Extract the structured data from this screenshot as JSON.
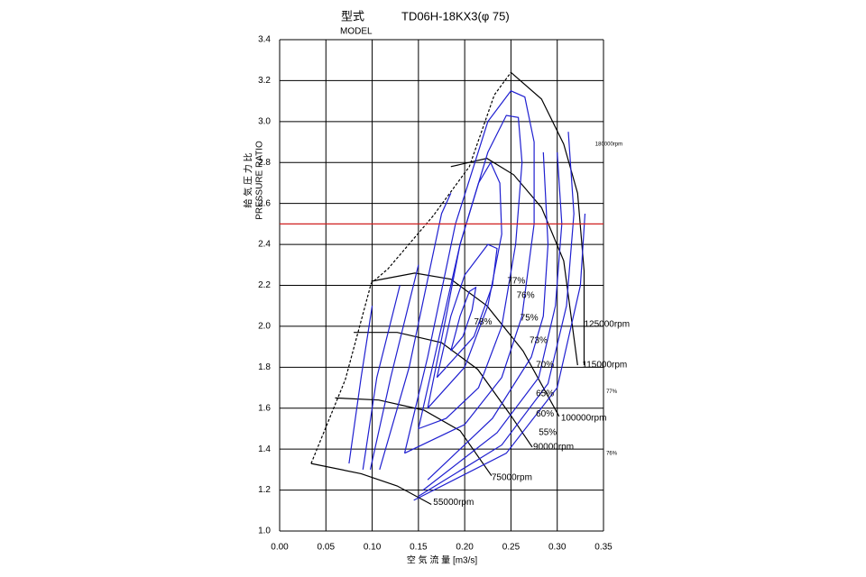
{
  "chart_data": {
    "type": "line",
    "model_label": "型式",
    "model": "TD06H-18KX3(φ 75)",
    "model_en": "MODEL",
    "ylabel_ja": "給 気 圧 力 比",
    "ylabel_en": "PRESSURE RATIO",
    "xlabel": "空 気 流 量 [m3/s]",
    "xlim": [
      0,
      0.35
    ],
    "ylim": [
      1,
      3.4
    ],
    "xticks": [
      {
        "value": 0,
        "label": "0.00"
      },
      {
        "value": 0.05,
        "label": "0.05"
      },
      {
        "value": 0.1,
        "label": "0.10"
      },
      {
        "value": 0.15,
        "label": "0.15"
      },
      {
        "value": 0.2,
        "label": "0.20"
      },
      {
        "value": 0.25,
        "label": "0.25"
      },
      {
        "value": 0.3,
        "label": "0.30"
      },
      {
        "value": 0.35,
        "label": "0.35"
      }
    ],
    "yticks": [
      {
        "value": 1,
        "label": "1.0"
      },
      1.2,
      1.4,
      1.6,
      1.8,
      {
        "value": 2,
        "label": "2.0"
      },
      2.2,
      2.4,
      2.6,
      2.8,
      {
        "value": 3,
        "label": "3.0"
      },
      3.2,
      3.4
    ],
    "grid": true,
    "grid_color": "#000000",
    "series": [
      {
        "color": "#000000",
        "dash": true,
        "x": [
          0.034,
          0.071,
          0.099,
          0.117,
          0.166,
          0.205,
          0.232,
          0.25
        ],
        "values": [
          1.33,
          1.74,
          2.21,
          2.28,
          2.54,
          2.78,
          3.13,
          3.24
        ]
      },
      {
        "color": "#000000",
        "x": [
          0.25,
          0.283,
          0.307,
          0.322,
          0.329,
          0.329
        ],
        "values": [
          3.24,
          3.11,
          2.89,
          2.65,
          2.27,
          1.81
        ]
      },
      {
        "color": "#000000",
        "x": [
          0.034,
          0.088,
          0.127,
          0.164
        ],
        "values": [
          1.33,
          1.28,
          1.22,
          1.13
        ]
      },
      {
        "color": "#000000",
        "x": [
          0.06,
          0.107,
          0.156,
          0.195,
          0.229
        ],
        "values": [
          1.65,
          1.64,
          1.59,
          1.49,
          1.27
        ]
      },
      {
        "color": "#000000",
        "x": [
          0.08,
          0.127,
          0.175,
          0.214,
          0.249,
          0.273
        ],
        "values": [
          1.97,
          1.97,
          1.92,
          1.79,
          1.57,
          1.41
        ]
      },
      {
        "color": "#000000",
        "x": [
          0.099,
          0.146,
          0.185,
          0.224,
          0.263,
          0.302
        ],
        "values": [
          2.22,
          2.26,
          2.23,
          2.1,
          1.88,
          1.56
        ]
      },
      {
        "color": "#000000",
        "x": [
          0.185,
          0.224,
          0.253,
          0.283,
          0.307,
          0.322
        ],
        "values": [
          2.78,
          2.82,
          2.74,
          2.58,
          2.32,
          1.81
        ]
      },
      {
        "color": "#1f1fd0",
        "x": [
          0.185,
          0.195,
          0.205,
          0.212,
          0.208,
          0.198,
          0.185
        ],
        "values": [
          1.88,
          2.05,
          2.17,
          2.19,
          2.08,
          1.95,
          1.88
        ]
      },
      {
        "color": "#1f1fd0",
        "x": [
          0.17,
          0.185,
          0.2,
          0.225,
          0.235,
          0.23,
          0.21,
          0.17
        ],
        "values": [
          1.75,
          2.05,
          2.25,
          2.4,
          2.38,
          2.2,
          1.95,
          1.75
        ]
      },
      {
        "color": "#1f1fd0",
        "x": [
          0.16,
          0.18,
          0.195,
          0.215,
          0.228,
          0.238,
          0.24,
          0.225,
          0.2,
          0.16
        ],
        "values": [
          1.6,
          2.05,
          2.4,
          2.7,
          2.8,
          2.7,
          2.45,
          2.1,
          1.8,
          1.6
        ]
      },
      {
        "color": "#1f1fd0",
        "x": [
          0.15,
          0.17,
          0.195,
          0.225,
          0.245,
          0.258,
          0.262,
          0.255,
          0.24,
          0.215,
          0.18,
          0.15
        ],
        "values": [
          1.5,
          1.9,
          2.4,
          2.85,
          3.03,
          3.02,
          2.8,
          2.4,
          2.0,
          1.7,
          1.55,
          1.5
        ]
      },
      {
        "color": "#1f1fd0",
        "x": [
          0.135,
          0.16,
          0.19,
          0.225,
          0.25,
          0.265,
          0.275,
          0.275,
          0.262,
          0.24,
          0.2,
          0.135
        ],
        "values": [
          1.38,
          1.85,
          2.5,
          3.0,
          3.15,
          3.12,
          2.9,
          2.5,
          2.05,
          1.75,
          1.52,
          1.38
        ]
      },
      {
        "color": "#1f1fd0",
        "x": [
          0.108,
          0.14,
          0.175,
          0.185,
          null,
          0.16,
          0.23,
          0.272,
          0.285,
          0.29,
          0.285
        ],
        "values": [
          1.3,
          1.8,
          2.55,
          2.65,
          null,
          1.25,
          1.55,
          1.85,
          2.05,
          2.4,
          2.85
        ]
      },
      {
        "color": "#1f1fd0",
        "x": [
          0.098,
          0.12,
          0.15,
          null,
          0.155,
          0.235,
          0.28,
          0.298,
          0.305,
          0.3
        ],
        "values": [
          1.3,
          1.75,
          2.3,
          null,
          1.2,
          1.48,
          1.75,
          2.1,
          2.5,
          2.85
        ]
      },
      {
        "color": "#1f1fd0",
        "x": [
          0.09,
          0.105,
          0.13,
          null,
          0.15,
          0.24,
          0.29,
          0.31,
          0.318,
          0.312
        ],
        "values": [
          1.3,
          1.75,
          2.2,
          null,
          1.17,
          1.42,
          1.72,
          2.1,
          2.55,
          2.95
        ]
      },
      {
        "color": "#1f1fd0",
        "x": [
          0.075,
          0.088,
          0.1,
          null,
          0.145,
          0.245,
          0.3,
          0.325,
          0.33
        ],
        "values": [
          1.33,
          1.75,
          2.1,
          null,
          1.15,
          1.38,
          1.7,
          2.2,
          2.55
        ]
      },
      {
        "color": "#d02020",
        "x": [
          0,
          0.35
        ],
        "values": [
          2.5,
          2.5
        ]
      }
    ],
    "annotations": [
      {
        "text": "77%",
        "x": 0.246,
        "y": 2.22
      },
      {
        "text": "76%",
        "x": 0.256,
        "y": 2.15
      },
      {
        "text": "78%",
        "x": 0.21,
        "y": 2.02
      },
      {
        "text": "75%",
        "x": 0.26,
        "y": 2.04
      },
      {
        "text": "73%",
        "x": 0.27,
        "y": 1.93
      },
      {
        "text": "70%",
        "x": 0.277,
        "y": 1.81
      },
      {
        "text": "65%",
        "x": 0.277,
        "y": 1.67
      },
      {
        "text": "60%",
        "x": 0.277,
        "y": 1.57
      },
      {
        "text": "55%",
        "x": 0.28,
        "y": 1.48
      },
      {
        "text": "125000rpm",
        "x": 0.329,
        "y": 2.01
      },
      {
        "text": "115000rpm",
        "x": 0.327,
        "y": 1.81
      },
      {
        "text": "100000rpm",
        "x": 0.304,
        "y": 1.55
      },
      {
        "text": "90000rpm",
        "x": 0.274,
        "y": 1.41
      },
      {
        "text": "75000rpm",
        "x": 0.229,
        "y": 1.26
      },
      {
        "text": "55000rpm",
        "x": 0.166,
        "y": 1.14
      },
      {
        "text": "180000rpm",
        "x": 0.341,
        "y": 2.89,
        "small": true
      },
      {
        "text": "77%",
        "x": 0.353,
        "y": 1.68,
        "small": true
      },
      {
        "text": "76%",
        "x": 0.353,
        "y": 1.38,
        "small": true
      }
    ]
  }
}
